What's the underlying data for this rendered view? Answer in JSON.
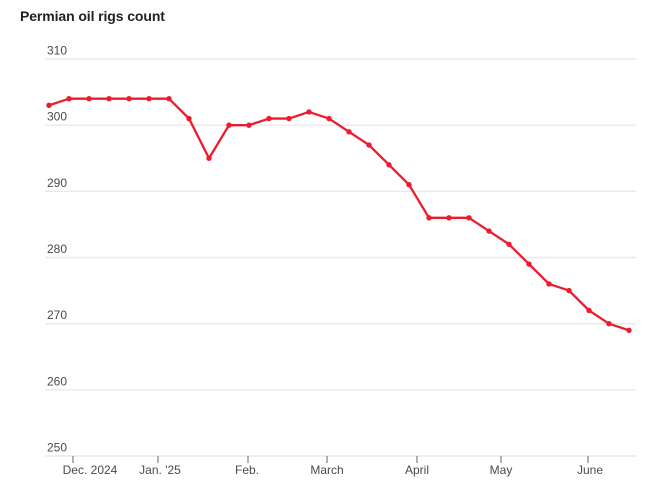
{
  "title": "Permian oil rigs count",
  "chart_data": {
    "type": "line",
    "title": "Permian oil rigs count",
    "x_axis": {
      "tick_labels": [
        "Dec. 2024",
        "Jan. '25",
        "Feb.",
        "March",
        "April",
        "May",
        "June"
      ]
    },
    "y_axis": {
      "ticks": [
        250,
        260,
        270,
        280,
        290,
        300,
        310
      ],
      "range": [
        250,
        310
      ]
    },
    "series": [
      {
        "name": "Permian oil rigs count",
        "color": "#ed1b2e",
        "values": [
          303,
          304,
          304,
          304,
          304,
          304,
          304,
          301,
          295,
          300,
          300,
          301,
          301,
          302,
          301,
          299,
          297,
          294,
          291,
          286,
          286,
          286,
          284,
          282,
          279,
          276,
          275,
          272,
          270,
          269
        ]
      }
    ],
    "grid": "horizontal",
    "legend": "none",
    "markers": true
  },
  "colors": {
    "line": "#ed1b2e",
    "grid": "#e9e9e9",
    "axis_text": "#4b4b4b",
    "title_text": "#222222",
    "tick": "#666666",
    "background": "#ffffff"
  }
}
